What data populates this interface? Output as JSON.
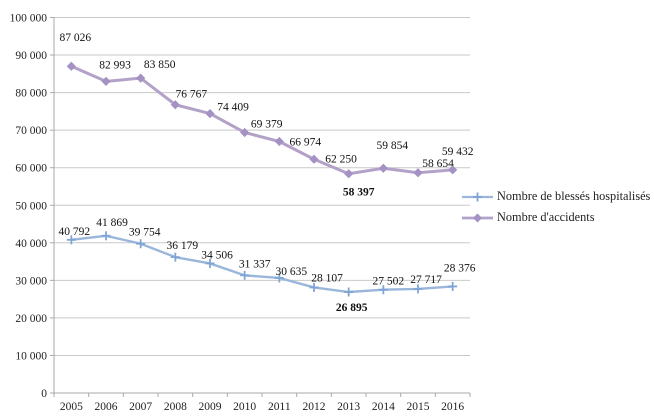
{
  "chart_data": {
    "type": "line",
    "title": "",
    "xlabel": "",
    "ylabel": "",
    "categories": [
      "2005",
      "2006",
      "2007",
      "2008",
      "2009",
      "2010",
      "2011",
      "2012",
      "2013",
      "2014",
      "2015",
      "2016"
    ],
    "series": [
      {
        "name": "Nombre de blessés hospitalisés",
        "marker": "plus",
        "color": "#9ab6db",
        "marker_color": "#7fa5d6",
        "values": [
          40792,
          41869,
          39754,
          36179,
          34506,
          31337,
          30635,
          28107,
          26895,
          27502,
          27717,
          28376
        ],
        "emphasis_index": 8
      },
      {
        "name": "Nombre d'accidents",
        "marker": "diamond",
        "color": "#b2a2c7",
        "marker_color": "#a592c4",
        "values": [
          87026,
          82993,
          83850,
          76767,
          74409,
          69379,
          66974,
          62250,
          58397,
          59854,
          58654,
          59432
        ],
        "emphasis_index": 8
      }
    ],
    "ylim": [
      0,
      100000
    ],
    "ytick_step": 10000,
    "grid": true,
    "data_labels": true,
    "legend_position": "middle-right",
    "number_format": "thousands separated by space"
  },
  "colors": {
    "gridline": "#c9c9c9",
    "axis": "#a9a9a9",
    "text": "#1f1f1f",
    "label_text": "#111111"
  }
}
